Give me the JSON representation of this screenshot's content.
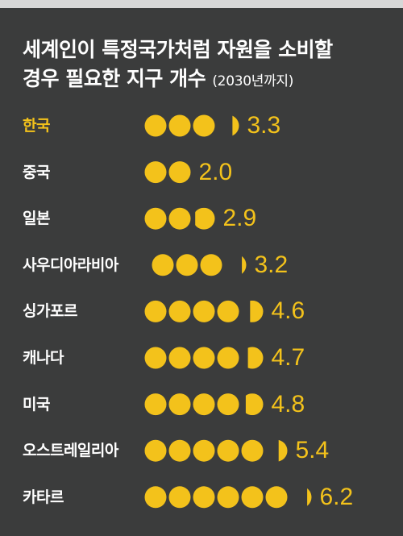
{
  "title_line1": "세계인이  특정국가처럼 자원을 소비할",
  "title_line2": "경우 필요한 지구 개수",
  "title_note": "(2030년까지)",
  "colors": {
    "background": "#3b3c3c",
    "accent": "#f3c21b",
    "text": "#ffffff"
  },
  "chart_data": {
    "type": "bar",
    "mark": "earth-circles",
    "unit": "지구 개수",
    "categories": [
      "한국",
      "중국",
      "일본",
      "사우디아라비아",
      "싱가포르",
      "캐나다",
      "미국",
      "오스트레일리아",
      "카타르"
    ],
    "values": [
      3.3,
      2.0,
      2.9,
      3.2,
      4.6,
      4.7,
      4.8,
      5.4,
      6.2
    ],
    "value_labels": [
      "3.3",
      "2.0",
      "2.9",
      "3.2",
      "4.6",
      "4.7",
      "4.8",
      "5.4",
      "6.2"
    ],
    "highlight": "한국"
  }
}
